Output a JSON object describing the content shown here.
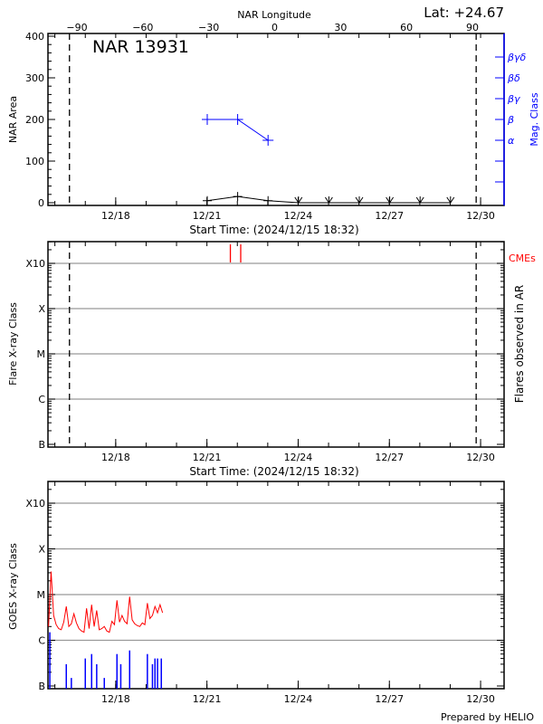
{
  "colors": {
    "area": "#000000",
    "mag": "#0000ff",
    "cme": "#ff0000",
    "goes_long": "#ff0000",
    "goes_short": "#0000ff",
    "grid": "#999999"
  },
  "header": {
    "lat_label": "Lat: +24.67",
    "region_title": "NAR 13931",
    "start_time_label": "Start Time: (2024/12/15 18:32)",
    "footer": "Prepared by HELIO"
  },
  "time_axis": {
    "start": "2024-12-15T18:32",
    "end": "2024-12-30T18:32",
    "tick_labels": [
      "12/18",
      "12/21",
      "12/24",
      "12/27",
      "12/30"
    ],
    "tick_dates": [
      "2024-12-18",
      "2024-12-21",
      "2024-12-24",
      "2024-12-27",
      "2024-12-30"
    ]
  },
  "chart_data": [
    {
      "type": "line",
      "title": "",
      "xlabel": "Start Time: (2024/12/15 18:32)",
      "ylabel": "NAR Area",
      "ylim": [
        0,
        400
      ],
      "yticks": [
        0,
        100,
        200,
        300,
        400
      ],
      "top_axis": {
        "label": "NAR Longitude",
        "ticks": [
          -90,
          -60,
          -30,
          0,
          30,
          60,
          90
        ],
        "dashed_limits": [
          -90,
          90
        ]
      },
      "right_axis": {
        "label": "Mag. Class",
        "ticks": [
          {
            "label": "α",
            "value": 150
          },
          {
            "label": "β",
            "value": 200
          },
          {
            "label": "βγ",
            "value": 250
          },
          {
            "label": "βδ",
            "value": 300
          },
          {
            "label": "βγδ",
            "value": 350
          }
        ]
      },
      "series": [
        {
          "x": [
            "2024-12-21T00:15",
            "2024-12-22T00:15",
            "2024-12-23T00:15",
            "2024-12-24T00:15",
            "2024-12-25T00:15",
            "2024-12-26T00:15",
            "2024-12-27T00:15",
            "2024-12-28T00:15",
            "2024-12-29T00:15"
          ],
          "values": [
            5,
            15,
            5,
            0,
            0,
            0,
            0,
            0,
            0
          ],
          "color": "#000000"
        },
        {
          "x": [
            "2024-12-21T00:15",
            "2024-12-22T00:15",
            "2024-12-23T00:15"
          ],
          "values": [
            "β",
            "β",
            "α"
          ],
          "color": "#0000ff"
        }
      ],
      "dashed_line_dates": [
        "2024-12-16T11:30",
        "2024-12-29T20:30"
      ]
    },
    {
      "type": "scatter",
      "xlabel": "Start Time: (2024/12/15 18:32)",
      "ylabel": "Flare X-ray Class",
      "right_label": "Flares observed in AR",
      "yscale": "log",
      "yticks": [
        "B",
        "C",
        "M",
        "X",
        "X10"
      ],
      "grid": true,
      "cme_label": "CMEs",
      "cmes": [
        "2024-12-21T18:30",
        "2024-12-22T02:40"
      ],
      "flares": [],
      "dashed_line_dates": [
        "2024-12-16T11:30",
        "2024-12-29T20:30"
      ]
    },
    {
      "type": "line",
      "ylabel": "GOES X-ray Class",
      "yscale": "log",
      "yticks": [
        "B",
        "C",
        "M",
        "X",
        "X10"
      ],
      "grid": true,
      "long_channel": {
        "x": [
          "2024-12-15T19:00",
          "2024-12-15T21:00",
          "2024-12-15T23:00",
          "2024-12-16T01:00",
          "2024-12-16T03:00",
          "2024-12-16T05:00",
          "2024-12-16T07:00",
          "2024-12-16T09:00",
          "2024-12-16T11:00",
          "2024-12-16T13:00",
          "2024-12-16T15:00",
          "2024-12-16T17:00",
          "2024-12-16T19:00",
          "2024-12-16T21:00",
          "2024-12-16T23:00",
          "2024-12-17T01:00",
          "2024-12-17T03:00",
          "2024-12-17T05:00",
          "2024-12-17T07:00",
          "2024-12-17T09:00",
          "2024-12-17T11:00",
          "2024-12-17T13:00",
          "2024-12-17T15:00",
          "2024-12-17T17:00",
          "2024-12-17T19:00",
          "2024-12-17T21:00",
          "2024-12-17T23:00",
          "2024-12-18T01:00",
          "2024-12-18T03:00",
          "2024-12-18T05:00",
          "2024-12-18T07:00",
          "2024-12-18T09:00",
          "2024-12-18T11:00",
          "2024-12-18T13:00",
          "2024-12-18T15:00",
          "2024-12-18T17:00",
          "2024-12-18T19:00",
          "2024-12-18T21:00",
          "2024-12-18T23:00",
          "2024-12-19T01:00",
          "2024-12-19T03:00",
          "2024-12-19T05:00",
          "2024-12-19T07:00",
          "2024-12-19T09:00",
          "2024-12-19T11:00",
          "2024-12-19T13:00"
        ],
        "values": [
          2e-06,
          3.2e-05,
          3.5e-06,
          2.2e-06,
          1.8e-06,
          1.7e-06,
          2.5e-06,
          5.5e-06,
          2e-06,
          2.3e-06,
          3.8e-06,
          2.4e-06,
          1.8e-06,
          1.6e-06,
          1.5e-06,
          5e-06,
          1.8e-06,
          6e-06,
          2e-06,
          4.5e-06,
          1.7e-06,
          1.8e-06,
          2e-06,
          1.6e-06,
          1.5e-06,
          2.6e-06,
          2.2e-06,
          7.5e-06,
          2.5e-06,
          3.5e-06,
          2.6e-06,
          2.3e-06,
          9e-06,
          2.8e-06,
          2.3e-06,
          2.1e-06,
          2e-06,
          2.4e-06,
          2.2e-06,
          6.5e-06,
          3e-06,
          3.5e-06,
          5.5e-06,
          4e-06,
          6e-06,
          4e-06
        ]
      },
      "short_channel": {
        "x": [
          "2024-12-15T20:00",
          "2024-12-16T09:00",
          "2024-12-16T13:00",
          "2024-12-17T00:00",
          "2024-12-17T05:00",
          "2024-12-17T09:00",
          "2024-12-17T15:00",
          "2024-12-18T01:00",
          "2024-12-18T04:00",
          "2024-12-18T11:00",
          "2024-12-19T01:00",
          "2024-12-19T05:00",
          "2024-12-19T07:00",
          "2024-12-19T09:00",
          "2024-12-19T12:00"
        ],
        "values": [
          1.5e-06,
          3e-07,
          1.5e-07,
          4e-07,
          5e-07,
          3e-07,
          1.5e-07,
          5e-07,
          3e-07,
          6e-07,
          5e-07,
          3e-07,
          4e-07,
          4e-07,
          4e-07
        ]
      }
    }
  ]
}
